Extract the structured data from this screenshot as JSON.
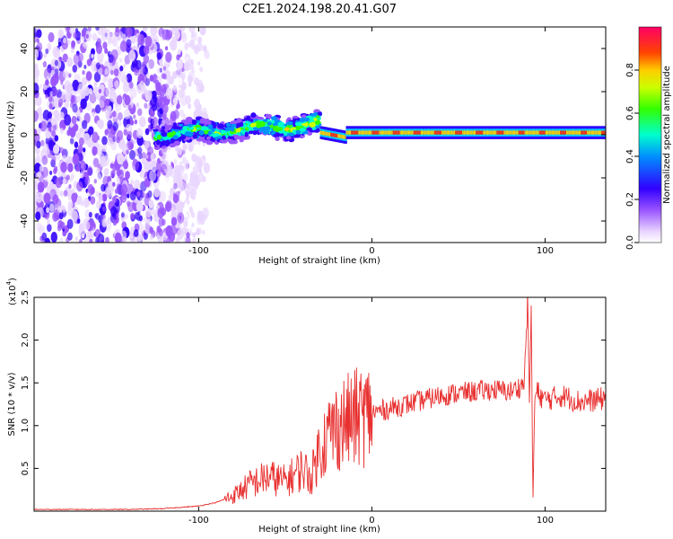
{
  "title": "C2E1.2024.198.20.41.G07",
  "chart_data": [
    {
      "type": "heatmap",
      "title": "C2E1.2024.198.20.41.G07",
      "xlabel": "Height of straight line (km)",
      "ylabel": "Frequency (Hz)",
      "xlim": [
        -195,
        135
      ],
      "ylim": [
        -50,
        50
      ],
      "x_ticks": [
        -100,
        0,
        100
      ],
      "y_ticks": [
        -40,
        -20,
        0,
        20,
        40
      ],
      "x_tick_labels": [
        "-100",
        "0",
        "100"
      ],
      "y_tick_labels": [
        "-40",
        "-20",
        "0",
        "20",
        "40"
      ],
      "colorbar": {
        "label": "Normalized spectral amplitude",
        "range": [
          0,
          1
        ],
        "ticks": [
          0.0,
          0.2,
          0.4,
          0.6,
          0.8
        ],
        "tick_labels": [
          "0.0",
          "0.2",
          "0.4",
          "0.6",
          "0.8"
        ],
        "colors": [
          "#ffffff",
          "#cc99ff",
          "#6a0dff",
          "#0000ff",
          "#00ffff",
          "#00ff00",
          "#ffff00",
          "#ff9900",
          "#ff0000",
          "#ff0080"
        ]
      },
      "regions": [
        {
          "x": [
            -195,
            -125
          ],
          "freq_range": [
            -50,
            50
          ],
          "amplitude": 0.2,
          "description_color": "#7a2ae0"
        },
        {
          "x": [
            -125,
            -85
          ],
          "freq_range": [
            -50,
            50
          ],
          "amplitude": 0.1
        },
        {
          "x": [
            -125,
            -30
          ],
          "freq_center": [
            0,
            5
          ],
          "amplitude": 0.45
        },
        {
          "x": [
            -30,
            135
          ],
          "freq_center": 0,
          "amplitude": 0.9
        }
      ]
    },
    {
      "type": "line",
      "xlabel": "Height of straight line (km)",
      "ylabel": "SNR (10 * v/v)",
      "y_multiplier": "(x10",
      "y_multiplier_exp": "4",
      "y_multiplier_close": ")",
      "xlim": [
        -195,
        135
      ],
      "ylim": [
        0,
        2.5
      ],
      "x_ticks": [
        -100,
        0,
        100
      ],
      "y_ticks": [
        0.5,
        1.0,
        1.5,
        2.0,
        2.5
      ],
      "x_tick_labels": [
        "-100",
        "0",
        "100"
      ],
      "y_tick_labels": [
        "0.5",
        "1.0",
        "1.5",
        "2.0",
        "2.5"
      ],
      "color": "#e83030",
      "series": [
        {
          "x": [
            -195,
            -180,
            -160,
            -140,
            -120,
            -100,
            -90,
            -80,
            -75,
            -70,
            -60,
            -50,
            -40,
            -35,
            -30,
            -25,
            -20,
            -10,
            0,
            10,
            20,
            30,
            40,
            50,
            60,
            70,
            80,
            85,
            88,
            90,
            91,
            92,
            93,
            94,
            95,
            100,
            110,
            120,
            130,
            135
          ],
          "y": [
            0.02,
            0.02,
            0.02,
            0.02,
            0.03,
            0.06,
            0.1,
            0.18,
            0.25,
            0.32,
            0.4,
            0.35,
            0.5,
            0.4,
            0.75,
            0.9,
            1.0,
            1.08,
            1.15,
            1.2,
            1.25,
            1.3,
            1.35,
            1.38,
            1.4,
            1.42,
            1.4,
            1.45,
            1.5,
            2.5,
            1.2,
            2.4,
            0.1,
            1.3,
            1.4,
            1.3,
            1.35,
            1.28,
            1.3,
            1.32
          ]
        }
      ]
    }
  ]
}
